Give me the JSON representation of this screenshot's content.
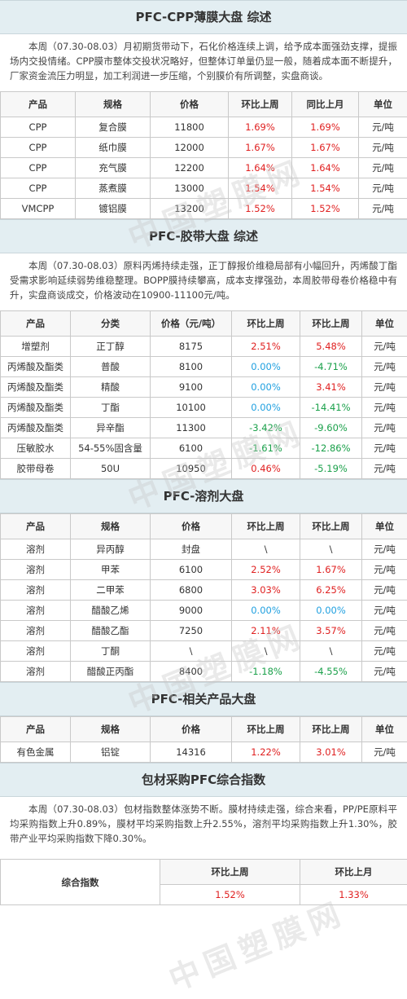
{
  "cpp": {
    "title": "PFC-CPP薄膜大盘 综述",
    "summary": "本周（07.30-08.03）月初期货带动下，石化价格连续上调，给予成本面强劲支撑，提振场内交投情绪。CPP膜市整体交投状况略好，但整体订单量仍显一般，随着成本面不断提升，厂家资金流压力明显，加工利润进一步压缩，个别膜价有所调整，实盘商谈。",
    "headers": [
      "产品",
      "规格",
      "价格",
      "环比上周",
      "同比上月",
      "单位"
    ],
    "rows": [
      [
        "CPP",
        "复合膜",
        "11800",
        "1.69%",
        "1.69%",
        "元/吨"
      ],
      [
        "CPP",
        "纸巾膜",
        "12000",
        "1.67%",
        "1.67%",
        "元/吨"
      ],
      [
        "CPP",
        "充气膜",
        "12200",
        "1.64%",
        "1.64%",
        "元/吨"
      ],
      [
        "CPP",
        "蒸煮膜",
        "13000",
        "1.54%",
        "1.54%",
        "元/吨"
      ],
      [
        "VMCPP",
        "镀铝膜",
        "13200",
        "1.52%",
        "1.52%",
        "元/吨"
      ]
    ]
  },
  "tape": {
    "title": "PFC-胶带大盘 综述",
    "summary": "本周（07.30-08.03）原料丙烯持续走强，正丁醇报价维稳局部有小幅回升，丙烯酸丁酯受需求影响延续弱势维稳整理。BOPP膜持续攀高，成本支撑强劲，本周胶带母卷价格稳中有升，实盘商谈成交，价格波动在10900-11100元/吨。",
    "headers": [
      "产品",
      "分类",
      "价格（元/吨）",
      "环比上周",
      "环比上周",
      "单位"
    ],
    "rows": [
      [
        "增塑剂",
        "正丁醇",
        "8175",
        "2.51%",
        "5.48%",
        "元/吨"
      ],
      [
        "丙烯酸及酯类",
        "普酸",
        "8100",
        "0.00%",
        "-4.71%",
        "元/吨"
      ],
      [
        "丙烯酸及酯类",
        "精酸",
        "9100",
        "0.00%",
        "3.41%",
        "元/吨"
      ],
      [
        "丙烯酸及酯类",
        "丁酯",
        "10100",
        "0.00%",
        "-14.41%",
        "元/吨"
      ],
      [
        "丙烯酸及酯类",
        "异辛酯",
        "11300",
        "-3.42%",
        "-9.60%",
        "元/吨"
      ],
      [
        "压敏胶水",
        "54-55%固含量",
        "6100",
        "-1.61%",
        "-12.86%",
        "元/吨"
      ],
      [
        "胶带母卷",
        "50U",
        "10950",
        "0.46%",
        "-5.19%",
        "元/吨"
      ]
    ]
  },
  "solvent": {
    "title": "PFC-溶剂大盘",
    "headers": [
      "产品",
      "规格",
      "价格",
      "环比上周",
      "环比上周",
      "单位"
    ],
    "rows": [
      [
        "溶剂",
        "异丙醇",
        "封盘",
        "\\",
        "\\",
        "元/吨"
      ],
      [
        "溶剂",
        "甲苯",
        "6100",
        "2.52%",
        "1.67%",
        "元/吨"
      ],
      [
        "溶剂",
        "二甲苯",
        "6800",
        "3.03%",
        "6.25%",
        "元/吨"
      ],
      [
        "溶剂",
        "醋酸乙烯",
        "9000",
        "0.00%",
        "0.00%",
        "元/吨"
      ],
      [
        "溶剂",
        "醋酸乙酯",
        "7250",
        "2.11%",
        "3.57%",
        "元/吨"
      ],
      [
        "溶剂",
        "丁酮",
        "\\",
        "\\",
        "\\",
        "元/吨"
      ],
      [
        "溶剂",
        "醋酸正丙酯",
        "8400",
        "-1.18%",
        "-4.55%",
        "元/吨"
      ]
    ]
  },
  "related": {
    "title": "PFC-相关产品大盘",
    "headers": [
      "产品",
      "规格",
      "价格",
      "环比上周",
      "环比上周",
      "单位"
    ],
    "rows": [
      [
        "有色金属",
        "铝锭",
        "14316",
        "1.22%",
        "3.01%",
        "元/吨"
      ]
    ]
  },
  "index": {
    "title": "包材采购PFC综合指数",
    "summary": "本周（07.30-08.03）包材指数整体涨势不断。膜材持续走强，综合来看，PP/PE原料平均采购指数上升0.89%，膜材平均采购指数上升2.55%，溶剂平均采购指数上升1.30%，胶带产业平均采购指数下降0.30%。",
    "row_label": "综合指数",
    "headers": [
      "环比上周",
      "环比上月"
    ],
    "values": [
      "1.52%",
      "1.33%"
    ]
  },
  "colors": {
    "up": "#e02020",
    "down": "#1aa04a",
    "flat": "#20a0e0",
    "header_bg": "#e3eef2"
  },
  "watermark": "中国塑膜网"
}
